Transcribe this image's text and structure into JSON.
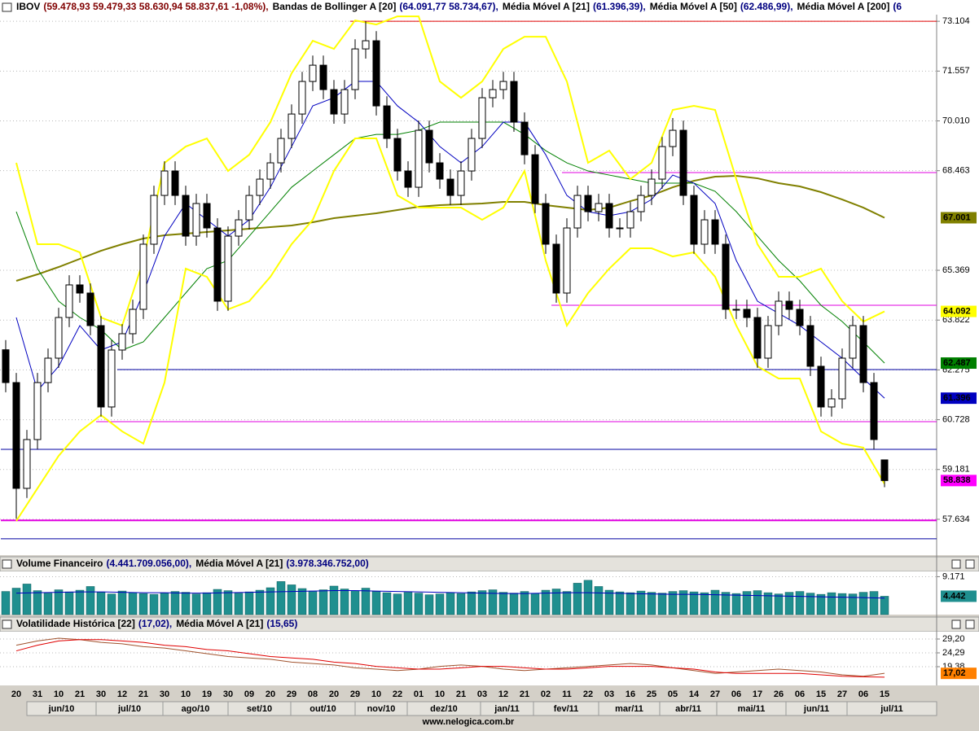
{
  "chart_data": [
    {
      "type": "candlestick",
      "legend": [
        {
          "name": "IBOV",
          "values": "(59.478,93 59.479,33 58.630,94 58.837,61 -1,08%),"
        },
        {
          "name": "Bandas de Bollinger A [20]",
          "values": "(64.091,77 58.734,67),"
        },
        {
          "name": "Média Móvel A [21]",
          "values": "(61.396,39),"
        },
        {
          "name": "Média Móvel A [50]",
          "values": "(62.486,99),"
        },
        {
          "name": "Média Móvel A [200]",
          "values": "(6"
        }
      ],
      "candles": {
        "open": [
          62900,
          61881,
          58595,
          60111,
          61881,
          62639,
          63903,
          64915,
          64662,
          63651,
          61123,
          62892,
          63398,
          64156,
          66179,
          67695,
          68454,
          67695,
          66431,
          67443,
          66684,
          64409,
          66431,
          66937,
          67695,
          68201,
          68707,
          69465,
          70223,
          71235,
          71740,
          70982,
          70223,
          70982,
          72246,
          72499,
          70476,
          69465,
          68454,
          67948,
          69718,
          68707,
          68201,
          67695,
          68454,
          69465,
          70729,
          70982,
          71235,
          69971,
          68959,
          67443,
          66179,
          64662,
          66684,
          67695,
          67190,
          67443,
          66684,
          66684,
          67190,
          67695,
          68201,
          69212,
          69718,
          67695,
          66179,
          66937,
          66179,
          64156,
          64156,
          63903,
          62639,
          63651,
          64409,
          64156,
          63651,
          62387,
          61123,
          61375,
          62639,
          63651,
          61881,
          59478.93
        ],
        "high": [
          63200,
          62181,
          60411,
          62181,
          62939,
          64203,
          65215,
          65215,
          64962,
          63951,
          63192,
          63698,
          64456,
          66479,
          67995,
          68754,
          68754,
          67995,
          67743,
          67743,
          66984,
          66731,
          67237,
          67995,
          68501,
          69007,
          69765,
          70523,
          71535,
          72040,
          72040,
          71282,
          71282,
          72546,
          73104,
          72799,
          70776,
          69765,
          68754,
          70018,
          70018,
          69007,
          68501,
          68754,
          69765,
          71029,
          71282,
          71535,
          71535,
          70271,
          69259,
          67743,
          66479,
          66984,
          67995,
          67995,
          67743,
          67743,
          66984,
          67490,
          67995,
          68501,
          69512,
          70100,
          70018,
          67995,
          67237,
          67237,
          66479,
          64456,
          64456,
          64203,
          63951,
          64709,
          64709,
          64456,
          63951,
          62687,
          61675,
          62939,
          63951,
          63951,
          62181,
          59479.33
        ],
        "low": [
          61581,
          57650,
          58295,
          59811,
          61581,
          62339,
          63603,
          64362,
          63351,
          60823,
          60823,
          62592,
          63098,
          63856,
          65879,
          67395,
          67395,
          66131,
          66131,
          66384,
          64109,
          64109,
          66131,
          66637,
          67395,
          67901,
          68407,
          69165,
          69923,
          70935,
          70682,
          69923,
          69923,
          70682,
          71946,
          70176,
          69165,
          68154,
          67648,
          67648,
          68407,
          67901,
          67395,
          67395,
          68154,
          69165,
          70429,
          70682,
          69671,
          68659,
          67143,
          65879,
          64362,
          64362,
          66384,
          66890,
          66890,
          66384,
          66384,
          66384,
          66890,
          67395,
          67901,
          68912,
          67395,
          65879,
          65879,
          65879,
          63856,
          63856,
          63603,
          62339,
          62339,
          63351,
          63856,
          63351,
          62087,
          60823,
          60823,
          61075,
          62339,
          61581,
          59811,
          58630.94
        ],
        "close": [
          61881,
          58595,
          60111,
          61881,
          62639,
          63903,
          64915,
          64662,
          63651,
          61123,
          62892,
          63398,
          64156,
          66179,
          67695,
          68454,
          67695,
          66431,
          67443,
          66684,
          64409,
          66431,
          66937,
          67695,
          68201,
          68707,
          69465,
          70223,
          71235,
          71740,
          70982,
          70223,
          70982,
          72246,
          72499,
          70476,
          69465,
          68454,
          67948,
          69718,
          68707,
          68201,
          67695,
          68454,
          69465,
          70729,
          70982,
          71235,
          69971,
          68959,
          67443,
          66179,
          64662,
          66684,
          67695,
          67190,
          67443,
          66684,
          66684,
          67190,
          67695,
          68201,
          69212,
          69718,
          67695,
          66179,
          66937,
          66179,
          64156,
          64156,
          63903,
          62639,
          63651,
          64409,
          64156,
          63651,
          62387,
          61123,
          61375,
          62639,
          63651,
          61881,
          60111,
          58837.61
        ],
        "last_label": "58.838",
        "label_color": "#ff00ff"
      },
      "series": [
        {
          "color": "#808000",
          "values": [
            65041,
            65243,
            65471,
            65724,
            65976,
            66179,
            66356,
            66457,
            66507,
            66558,
            66608,
            66659,
            66710,
            66760,
            66861,
            66988,
            67063,
            67139,
            67240,
            67342,
            67392,
            67417,
            67443,
            67493,
            67493,
            67392,
            67316,
            67240,
            67316,
            67518,
            67695,
            67948,
            68150,
            68277,
            68302,
            68226,
            68075,
            67974,
            67797,
            67569,
            67316,
            67001
          ],
          "last_label": "67.001"
        },
        {
          "color": "#008000",
          "values": [
            67190,
            65420,
            64409,
            63903,
            63524,
            62892,
            63145,
            63903,
            64662,
            65420,
            65673,
            66431,
            67190,
            67948,
            68454,
            68959,
            69465,
            69591,
            69591,
            69718,
            69971,
            69971,
            69971,
            69971,
            69591,
            69086,
            68707,
            68454,
            68327,
            68201,
            68075,
            68075,
            68075,
            67822,
            67190,
            66431,
            65673,
            65041,
            64283,
            63777,
            63145,
            62486.99
          ],
          "last_label": "62.487"
        },
        {
          "color": "#0000c0",
          "values": [
            63903,
            61628,
            62387,
            63651,
            62892,
            63145,
            64662,
            66431,
            67443,
            66937,
            66431,
            66937,
            67948,
            69212,
            70476,
            70729,
            71235,
            71235,
            70476,
            69971,
            69212,
            68707,
            69212,
            69971,
            69971,
            68959,
            67695,
            67190,
            67063,
            67190,
            67569,
            68327,
            68075,
            67443,
            65673,
            64409,
            64030,
            63651,
            63145,
            62639,
            62007,
            61396.39
          ],
          "last_label": "61.396"
        },
        {
          "color": "#ffff00",
          "values": [
            68707,
            66179,
            66179,
            65926,
            63903,
            63651,
            65673,
            68707,
            69212,
            69465,
            68454,
            68959,
            69971,
            71487,
            72499,
            72246,
            73131,
            73004,
            73257,
            73257,
            71235,
            70729,
            71235,
            72246,
            72625,
            72625,
            71235,
            68707,
            69086,
            68201,
            68707,
            70350,
            70476,
            70350,
            68201,
            66179,
            65167,
            65167,
            65420,
            64409,
            63777,
            64091.77
          ],
          "last_label": "64.092"
        },
        {
          "color": "#ffff00",
          "values": [
            57583,
            58595,
            59606,
            60364,
            60870,
            60364,
            59985,
            61881,
            65420,
            65167,
            64156,
            64409,
            65167,
            66179,
            66937,
            68454,
            69465,
            69465,
            67695,
            67316,
            67316,
            67316,
            66937,
            67316,
            68454,
            65673,
            63651,
            64662,
            65420,
            66052,
            66052,
            65799,
            65926,
            65167,
            63651,
            62387,
            62007,
            62007,
            60364,
            59985,
            59859,
            58734.67
          ]
        }
      ],
      "hlines": [
        {
          "value": 73104,
          "color": "#e00000",
          "start": 33
        },
        {
          "value": 68403,
          "color": "#e000e0",
          "start": 53
        },
        {
          "value": 64283,
          "color": "#e000e0",
          "start": 52
        },
        {
          "value": 62285,
          "color": "#0000a0",
          "start": 11
        },
        {
          "value": 60668,
          "color": "#e000e0",
          "start": 9
        },
        {
          "value": 59808,
          "color": "#0000a0",
          "start": 0
        },
        {
          "value": 57600,
          "color": "#e000e0",
          "start": 0
        },
        {
          "value": 57027,
          "color": "#0000a0",
          "start": 0
        }
      ],
      "ylim": [
        56570,
        73310
      ],
      "yticks": [
        {
          "value": 73104,
          "label": "73.104"
        },
        {
          "value": 71557,
          "label": "71.557"
        },
        {
          "value": 70010,
          "label": "70.010"
        },
        {
          "value": 68463,
          "label": "68.463"
        },
        {
          "value": 65369,
          "label": "65.369"
        },
        {
          "value": 63822,
          "label": "63.822"
        },
        {
          "value": 62275,
          "label": "62.275"
        },
        {
          "value": 60728,
          "label": "60.728"
        },
        {
          "value": 59181,
          "label": "59.181"
        },
        {
          "value": 57634,
          "label": "57.634"
        }
      ],
      "grid": true
    },
    {
      "type": "bar",
      "legend": [
        {
          "name": "Volume Financeiro",
          "values": "(4.441.709.056,00),"
        },
        {
          "name": "Média Móvel A [21]",
          "values": "(3.978.346.752,00)"
        }
      ],
      "color": "#1f8f8f",
      "values": [
        5600,
        6400,
        7400,
        5800,
        5200,
        6000,
        5500,
        5900,
        6800,
        5400,
        5000,
        5700,
        5300,
        5100,
        4900,
        5200,
        5600,
        5400,
        5000,
        5300,
        6100,
        5800,
        5200,
        5500,
        5900,
        6500,
        8000,
        7200,
        6300,
        5700,
        6000,
        6900,
        6200,
        5800,
        6400,
        5600,
        5300,
        5000,
        5400,
        5200,
        4800,
        5000,
        5300,
        5100,
        5500,
        5800,
        6000,
        5400,
        5200,
        5600,
        5100,
        5900,
        6200,
        5600,
        7600,
        8300,
        6800,
        5900,
        5500,
        5300,
        5700,
        5400,
        5200,
        5600,
        5800,
        5500,
        5300,
        5900,
        5400,
        5100,
        5600,
        5800,
        5300,
        5000,
        5400,
        5600,
        5200,
        4900,
        5300,
        5100,
        5000,
        5400,
        5600,
        4441.709
      ],
      "last_label": "4.442",
      "label_color": "#1f8f8f",
      "series": [
        {
          "color": "#0000c0",
          "values": [
            5200,
            5300,
            5400,
            5500,
            5500,
            5400,
            5300,
            5300,
            5200,
            5200,
            5300,
            5400,
            5500,
            5600,
            5700,
            5800,
            5800,
            5700,
            5600,
            5500,
            5400,
            5300,
            5200,
            5100,
            5100,
            5200,
            5300,
            5300,
            5200,
            5100,
            5000,
            4900,
            4900,
            4800,
            4700,
            4600,
            4500,
            4400,
            4300,
            4200,
            4100,
            3978.35
          ]
        }
      ],
      "ylim": [
        0,
        10440
      ],
      "yticks": [
        {
          "value": 9171,
          "label": "9.171"
        }
      ],
      "grid": true
    },
    {
      "type": "line",
      "legend": [
        {
          "name": "Volatilidade Histórica [22]",
          "values": "(17,02),"
        },
        {
          "name": "Média Móvel A [21]",
          "values": "(15,65)"
        }
      ],
      "series": [
        {
          "color": "#a0522d",
          "values": [
            27,
            28.5,
            29.5,
            29,
            28,
            27.5,
            26.5,
            26,
            25,
            24,
            23,
            22.5,
            22,
            21,
            20.5,
            20,
            19,
            18.5,
            18,
            18.5,
            19.5,
            20,
            19.5,
            18.5,
            18,
            18.5,
            19,
            19.5,
            20,
            20.5,
            20,
            19,
            18,
            17,
            17.5,
            18,
            18.5,
            18,
            17.5,
            16.5,
            16,
            17.02
          ],
          "last_label": "17,02",
          "label_color": "#ff8000"
        },
        {
          "color": "#e00000",
          "values": [
            25,
            27,
            28.5,
            29,
            29,
            28.5,
            28,
            27,
            26.5,
            25.5,
            25,
            24,
            23,
            22.5,
            22,
            21,
            20.5,
            19.5,
            19,
            18.5,
            18.5,
            19,
            19.5,
            19.5,
            19,
            18.5,
            18.5,
            19,
            19.5,
            19.5,
            19.5,
            19,
            18.5,
            17.5,
            17,
            17,
            17,
            17,
            16.5,
            16,
            15.8,
            15.65
          ]
        }
      ],
      "ylim": [
        12.74,
        31.8
      ],
      "yticks": [
        {
          "value": 29.2,
          "label": "29,20"
        },
        {
          "value": 24.29,
          "label": "24,29"
        },
        {
          "value": 19.38,
          "label": "19,38"
        }
      ],
      "grid": true,
      "categories": [
        "20",
        "31",
        "10",
        "21",
        "30",
        "12",
        "21",
        "30",
        "10",
        "19",
        "30",
        "09",
        "20",
        "29",
        "08",
        "20",
        "29",
        "10",
        "22",
        "01",
        "10",
        "21",
        "03",
        "12",
        "21",
        "02",
        "11",
        "22",
        "03",
        "16",
        "25",
        "05",
        "14",
        "27",
        "06",
        "17",
        "26",
        "06",
        "15",
        "27",
        "06",
        "15"
      ],
      "months": [
        "jun/10",
        "jul/10",
        "ago/10",
        "set/10",
        "out/10",
        "nov/10",
        "dez/10",
        "jan/11",
        "fev/11",
        "mar/11",
        "abr/11",
        "mai/11",
        "jun/11",
        "jul/11"
      ],
      "footer": "www.nelogica.com.br"
    }
  ]
}
